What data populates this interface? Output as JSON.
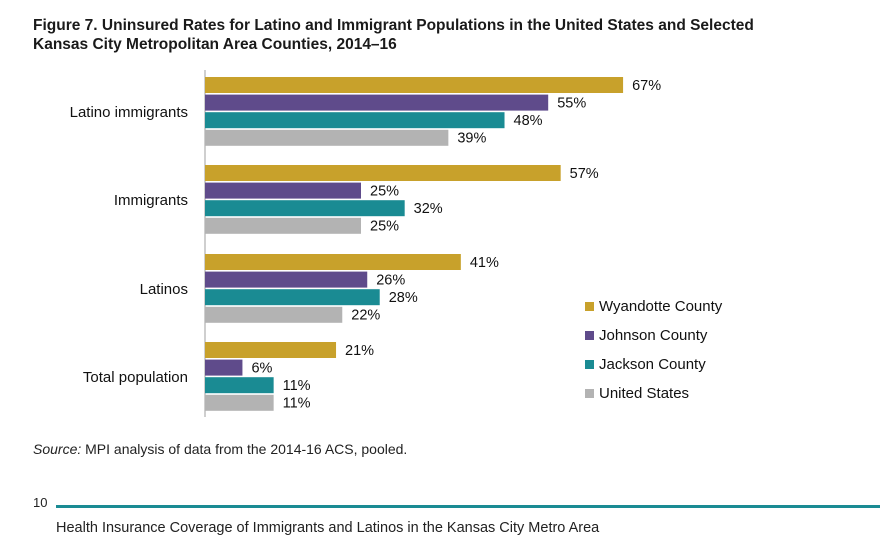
{
  "figure": {
    "title_line1": "Figure 7. Uninsured Rates for Latino and Immigrant Populations in the United States and Selected",
    "title_line2": "Kansas City Metropolitan Area Counties, 2014–16"
  },
  "chart_data": {
    "type": "bar",
    "orientation": "horizontal",
    "title": "Figure 7. Uninsured Rates for Latino and Immigrant Populations in the United States and Selected Kansas City Metropolitan Area Counties, 2014–16",
    "categories": [
      "Latino immigrants",
      "Immigrants",
      "Latinos",
      "Total population"
    ],
    "series": [
      {
        "name": "Wyandotte County",
        "color": "#c8a12b",
        "values": [
          67,
          57,
          41,
          21
        ]
      },
      {
        "name": "Johnson County",
        "color": "#5f4b8b",
        "values": [
          55,
          25,
          26,
          6
        ]
      },
      {
        "name": "Jackson County",
        "color": "#1a8b93",
        "values": [
          48,
          32,
          28,
          11
        ]
      },
      {
        "name": "United States",
        "color": "#b3b3b3",
        "values": [
          39,
          25,
          22,
          11
        ]
      }
    ],
    "value_suffix": "%",
    "xlim": [
      0,
      70
    ],
    "grid": false,
    "legend": "bottom-right",
    "xlabel": "",
    "ylabel": ""
  },
  "source": {
    "label": "Source:",
    "text": " MPI analysis of data from the 2014-16 ACS, pooled."
  },
  "footer": {
    "page_number": "10",
    "text": "Health Insurance Coverage of Immigrants and Latinos in the Kansas City Metro Area",
    "rule_color": "#1a8b93"
  }
}
